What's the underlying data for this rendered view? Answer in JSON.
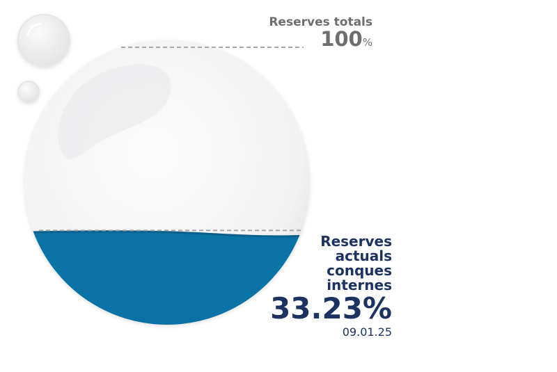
{
  "chart_data": {
    "type": "liquid-fill",
    "total": {
      "label": "Reserves totals",
      "value": 100,
      "unit": "%"
    },
    "current": {
      "label": "Reserves actuals conques internes",
      "value": 33.23,
      "value_text": "33.23%",
      "date": "09.01.25"
    },
    "colors": {
      "fill": "#0a73a6",
      "fill_edge": "#0a5f8b",
      "sphere": "#f4f4f5",
      "label_total": "#6e6e6e",
      "label_current": "#1c3260"
    }
  }
}
